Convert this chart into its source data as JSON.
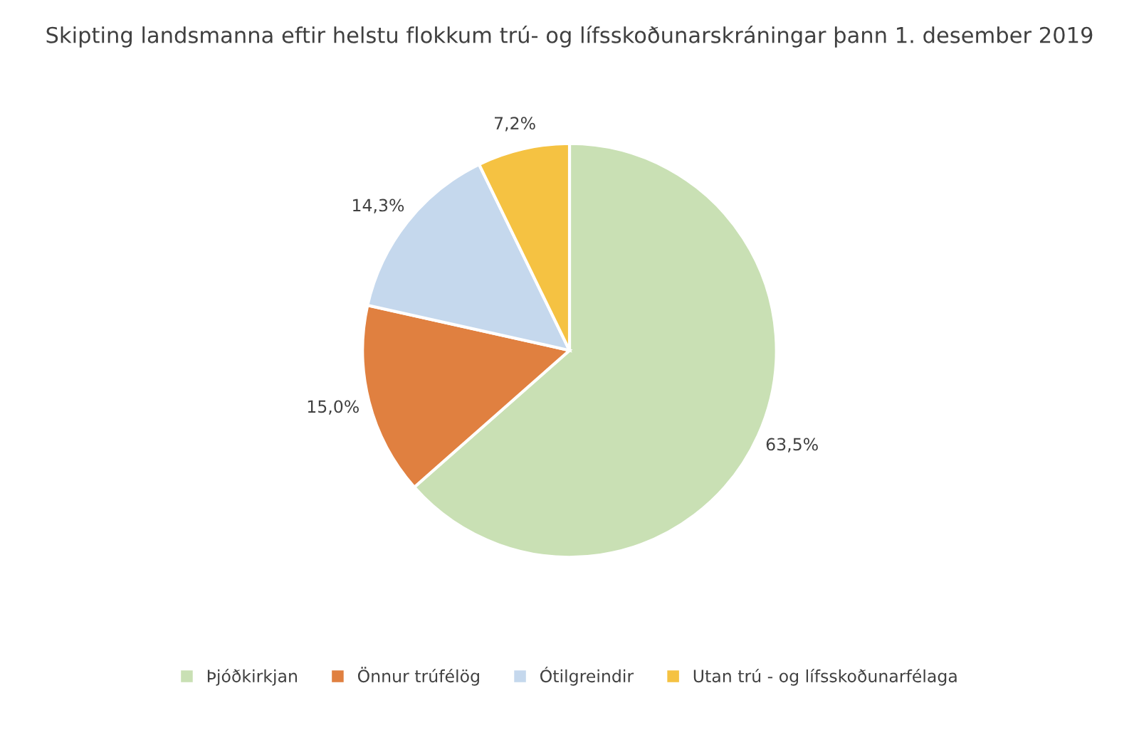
{
  "chart_data": {
    "type": "pie",
    "title": "Skipting landsmanna eftir helstu flokkum trú- og lífsskoðunarskráningar þann 1. desember 2019",
    "categories": [
      "Þjóðkirkjan",
      "Önnur trúfélög",
      "Ótilgreindir",
      "Utan trú - og lífsskoðunarfélaga"
    ],
    "values": [
      63.5,
      15.0,
      14.3,
      7.2
    ],
    "value_labels": [
      "63,5%",
      "15,0%",
      "14,3%",
      "7,2%"
    ],
    "colors": [
      "#c9e0b4",
      "#e08040",
      "#c5d8ed",
      "#f5c242"
    ],
    "legend": "bottom"
  }
}
